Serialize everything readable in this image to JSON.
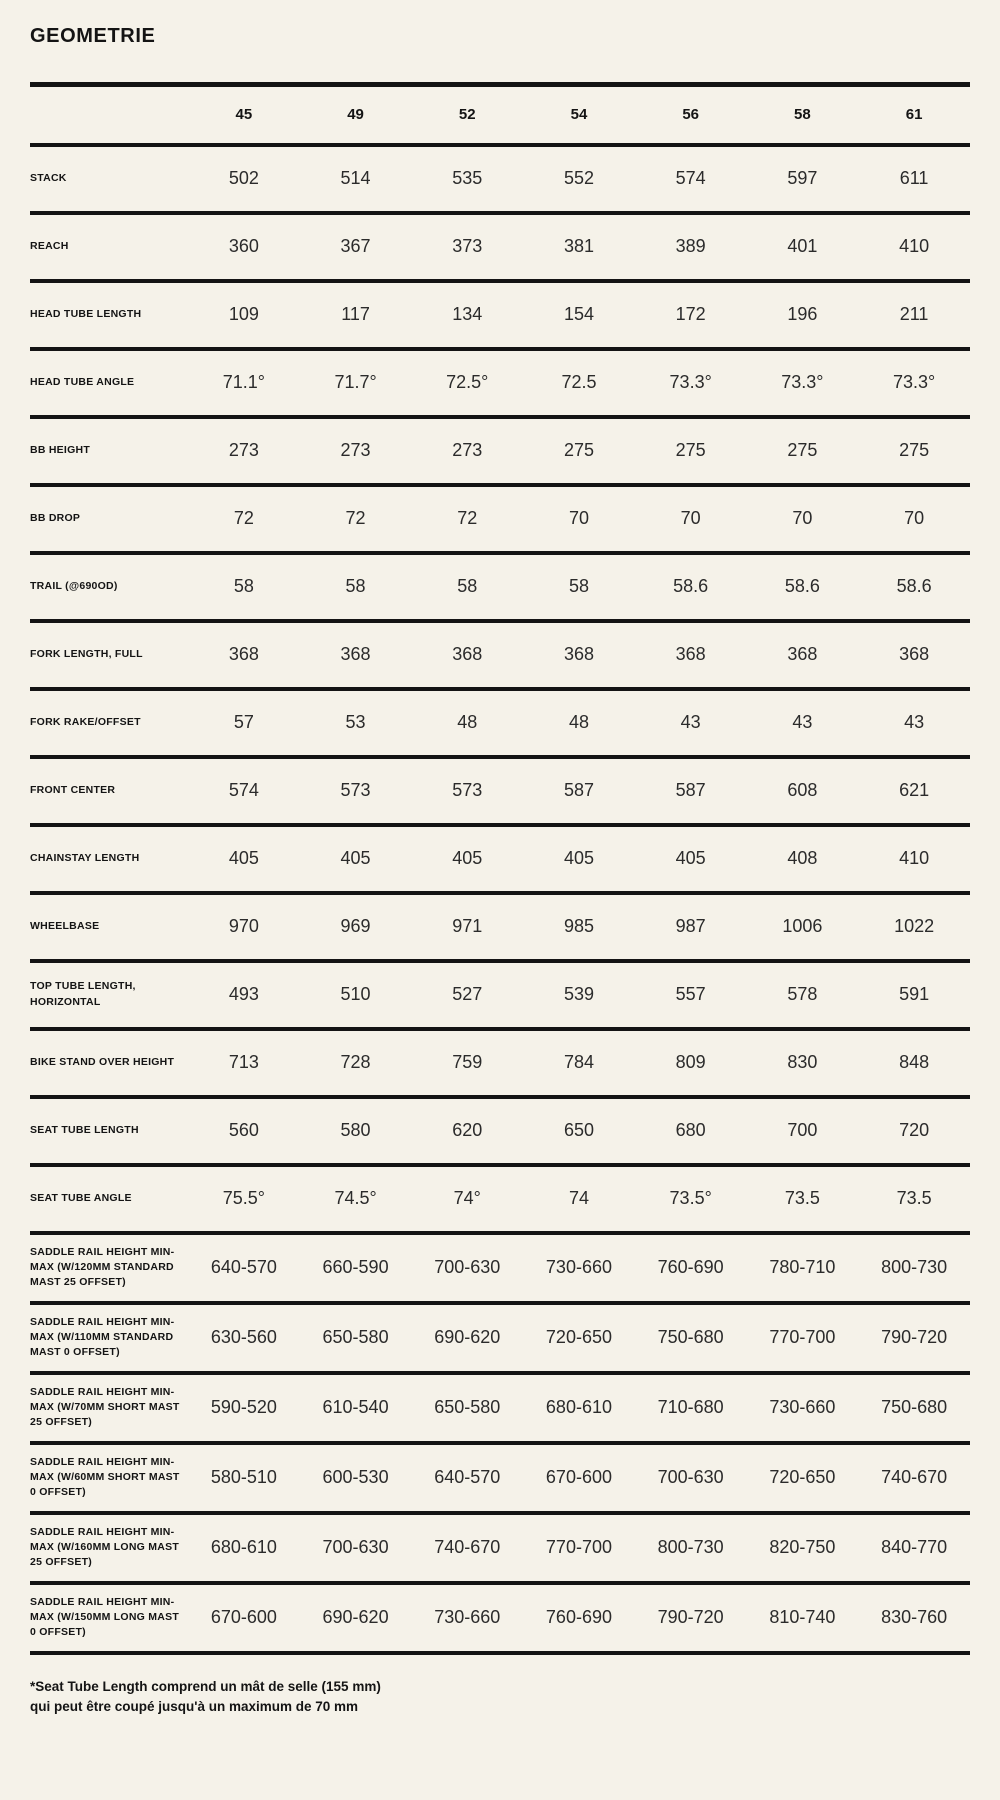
{
  "page": {
    "background_color": "#f5f2e9",
    "text_color": "#141414"
  },
  "chart_data": {
    "type": "table",
    "title": "GEOMETRIE",
    "columns": [
      "45",
      "49",
      "52",
      "54",
      "56",
      "58",
      "61"
    ],
    "rows": [
      {
        "label": "STACK",
        "values": [
          "502",
          "514",
          "535",
          "552",
          "574",
          "597",
          "611"
        ]
      },
      {
        "label": "REACH",
        "values": [
          "360",
          "367",
          "373",
          "381",
          "389",
          "401",
          "410"
        ]
      },
      {
        "label": "HEAD TUBE LENGTH",
        "values": [
          "109",
          "117",
          "134",
          "154",
          "172",
          "196",
          "211"
        ]
      },
      {
        "label": "HEAD TUBE ANGLE",
        "values": [
          "71.1°",
          "71.7°",
          "72.5°",
          "72.5",
          "73.3°",
          "73.3°",
          "73.3°"
        ]
      },
      {
        "label": "BB HEIGHT",
        "values": [
          "273",
          "273",
          "273",
          "275",
          "275",
          "275",
          "275"
        ]
      },
      {
        "label": "BB DROP",
        "values": [
          "72",
          "72",
          "72",
          "70",
          "70",
          "70",
          "70"
        ]
      },
      {
        "label": "TRAIL (@690OD)",
        "values": [
          "58",
          "58",
          "58",
          "58",
          "58.6",
          "58.6",
          "58.6"
        ]
      },
      {
        "label": "FORK LENGTH, FULL",
        "values": [
          "368",
          "368",
          "368",
          "368",
          "368",
          "368",
          "368"
        ]
      },
      {
        "label": "FORK RAKE/OFFSET",
        "values": [
          "57",
          "53",
          "48",
          "48",
          "43",
          "43",
          "43"
        ]
      },
      {
        "label": "FRONT CENTER",
        "values": [
          "574",
          "573",
          "573",
          "587",
          "587",
          "608",
          "621"
        ]
      },
      {
        "label": "CHAINSTAY LENGTH",
        "values": [
          "405",
          "405",
          "405",
          "405",
          "405",
          "408",
          "410"
        ]
      },
      {
        "label": "WHEELBASE",
        "values": [
          "970",
          "969",
          "971",
          "985",
          "987",
          "1006",
          "1022"
        ]
      },
      {
        "label": "TOP TUBE LENGTH, HORIZONTAL",
        "values": [
          "493",
          "510",
          "527",
          "539",
          "557",
          "578",
          "591"
        ]
      },
      {
        "label": "BIKE STAND OVER HEIGHT",
        "values": [
          "713",
          "728",
          "759",
          "784",
          "809",
          "830",
          "848"
        ]
      },
      {
        "label": "SEAT TUBE LENGTH",
        "values": [
          "560",
          "580",
          "620",
          "650",
          "680",
          "700",
          "720"
        ]
      },
      {
        "label": "SEAT TUBE ANGLE",
        "values": [
          "75.5°",
          "74.5°",
          "74°",
          "74",
          "73.5°",
          "73.5",
          "73.5"
        ]
      },
      {
        "label": "SADDLE RAIL HEIGHT MIN-MAX (W/120MM STANDARD MAST 25 OFFSET)",
        "tall": true,
        "values": [
          "640-570",
          "660-590",
          "700-630",
          "730-660",
          "760-690",
          "780-710",
          "800-730"
        ]
      },
      {
        "label": "SADDLE RAIL HEIGHT MIN-MAX (W/110MM STANDARD MAST 0 OFFSET)",
        "tall": true,
        "values": [
          "630-560",
          "650-580",
          "690-620",
          "720-650",
          "750-680",
          "770-700",
          "790-720"
        ]
      },
      {
        "label": "SADDLE RAIL HEIGHT MIN-MAX (W/70MM SHORT MAST 25 OFFSET)",
        "tall": true,
        "values": [
          "590-520",
          "610-540",
          "650-580",
          "680-610",
          "710-680",
          "730-660",
          "750-680"
        ]
      },
      {
        "label": "SADDLE RAIL HEIGHT MIN-MAX (W/60MM SHORT MAST 0 OFFSET)",
        "tall": true,
        "values": [
          "580-510",
          "600-530",
          "640-570",
          "670-600",
          "700-630",
          "720-650",
          "740-670"
        ]
      },
      {
        "label": "SADDLE RAIL HEIGHT MIN-MAX (W/160MM LONG MAST 25 OFFSET)",
        "tall": true,
        "values": [
          "680-610",
          "700-630",
          "740-670",
          "770-700",
          "800-730",
          "820-750",
          "840-770"
        ]
      },
      {
        "label": "SADDLE RAIL HEIGHT MIN-MAX (W/150MM LONG MAST 0 OFFSET)",
        "tall": true,
        "values": [
          "670-600",
          "690-620",
          "730-660",
          "760-690",
          "790-720",
          "810-740",
          "830-760"
        ]
      }
    ]
  },
  "footnote": {
    "line1": "*Seat Tube Length comprend un mât de selle (155 mm)",
    "line2": "qui peut être coupé jusqu'à un maximum de 70 mm"
  }
}
